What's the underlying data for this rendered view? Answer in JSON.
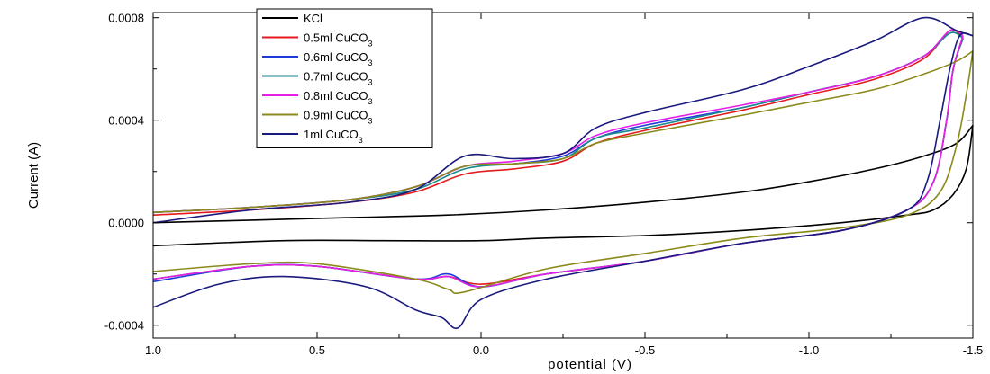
{
  "chart_data": {
    "type": "line",
    "title": "",
    "xlabel": "potential (V)",
    "ylabel": "Current (A)",
    "xlim": [
      1.0,
      -1.5
    ],
    "ylim": [
      -0.00045,
      0.00082
    ],
    "x_reversed": true,
    "x_ticks": [
      1.0,
      0.5,
      0.0,
      -0.5,
      -1.0,
      -1.5
    ],
    "x_tick_labels": [
      "1.0",
      "0.5",
      "0.0",
      "-0.5",
      "-1.0",
      "-1.5"
    ],
    "y_ticks": [
      -0.0004,
      0.0,
      0.0004,
      0.0008
    ],
    "y_tick_labels": [
      "-0.0004",
      "0.0000",
      "0.0004",
      "0.0008"
    ],
    "grid": false,
    "legend_position": "top-center",
    "series": [
      {
        "name": "KCl",
        "legend_main": "KCl",
        "legend_sub": "",
        "color": "#000000",
        "forward": [
          [
            1.0,
            0.0
          ],
          [
            0.7,
            1e-05
          ],
          [
            0.4,
            2e-05
          ],
          [
            0.1,
            3e-05
          ],
          [
            -0.2,
            5e-05
          ],
          [
            -0.5,
            8e-05
          ],
          [
            -0.8,
            0.00012
          ],
          [
            -1.0,
            0.00016
          ],
          [
            -1.2,
            0.00021
          ],
          [
            -1.35,
            0.00026
          ],
          [
            -1.45,
            0.00031
          ],
          [
            -1.5,
            0.00038
          ]
        ],
        "reverse": [
          [
            -1.5,
            0.00038
          ],
          [
            -1.48,
            0.00021
          ],
          [
            -1.44,
            0.00011
          ],
          [
            -1.38,
            5e-05
          ],
          [
            -1.3,
            3e-05
          ],
          [
            -1.1,
            0.0
          ],
          [
            -0.8,
            -3e-05
          ],
          [
            -0.5,
            -5e-05
          ],
          [
            -0.2,
            -6e-05
          ],
          [
            0.0,
            -7e-05
          ],
          [
            0.3,
            -7e-05
          ],
          [
            0.6,
            -7e-05
          ],
          [
            1.0,
            -9e-05
          ]
        ]
      },
      {
        "name": "0.5ml CuCO3",
        "legend_main": "0.5ml CuCO",
        "legend_sub": "3",
        "color": "#e41a1c",
        "forward": [
          [
            1.0,
            3e-05
          ],
          [
            0.7,
            5e-05
          ],
          [
            0.4,
            8e-05
          ],
          [
            0.2,
            0.00012
          ],
          [
            0.05,
            0.00019
          ],
          [
            -0.1,
            0.00021
          ],
          [
            -0.25,
            0.00024
          ],
          [
            -0.35,
            0.00031
          ],
          [
            -0.5,
            0.00036
          ],
          [
            -0.8,
            0.00044
          ],
          [
            -1.0,
            0.0005
          ],
          [
            -1.2,
            0.00056
          ],
          [
            -1.35,
            0.00064
          ],
          [
            -1.43,
            0.00075
          ],
          [
            -1.47,
            0.00072
          ]
        ],
        "reverse": [
          [
            -1.47,
            0.00072
          ],
          [
            -1.44,
            0.0006
          ],
          [
            -1.42,
            0.0004
          ],
          [
            -1.38,
            0.00016
          ],
          [
            -1.3,
            5e-05
          ],
          [
            -1.1,
            -3e-05
          ],
          [
            -0.8,
            -8e-05
          ],
          [
            -0.5,
            -0.00015
          ],
          [
            -0.2,
            -0.0002
          ],
          [
            0.0,
            -0.00024
          ],
          [
            0.1,
            -0.00021
          ],
          [
            0.2,
            -0.00022
          ],
          [
            0.5,
            -0.00017
          ],
          [
            0.7,
            -0.00017
          ],
          [
            1.0,
            -0.00022
          ]
        ]
      },
      {
        "name": "0.6ml CuCO3",
        "legend_main": "0.6ml CuCO",
        "legend_sub": "3",
        "color": "#1f3adb",
        "forward": [
          [
            1.0,
            4e-05
          ],
          [
            0.7,
            6e-05
          ],
          [
            0.4,
            9e-05
          ],
          [
            0.2,
            0.00014
          ],
          [
            0.05,
            0.00022
          ],
          [
            -0.1,
            0.00023
          ],
          [
            -0.25,
            0.00026
          ],
          [
            -0.35,
            0.00033
          ],
          [
            -0.5,
            0.00038
          ],
          [
            -0.8,
            0.00045
          ],
          [
            -1.0,
            0.00051
          ],
          [
            -1.2,
            0.00057
          ],
          [
            -1.35,
            0.00065
          ],
          [
            -1.43,
            0.00074
          ],
          [
            -1.47,
            0.00072
          ]
        ],
        "reverse": [
          [
            -1.47,
            0.00072
          ],
          [
            -1.44,
            0.0006
          ],
          [
            -1.42,
            0.0004
          ],
          [
            -1.38,
            0.00016
          ],
          [
            -1.3,
            5e-05
          ],
          [
            -1.1,
            -3e-05
          ],
          [
            -0.8,
            -8e-05
          ],
          [
            -0.5,
            -0.00015
          ],
          [
            -0.2,
            -0.0002
          ],
          [
            0.0,
            -0.00025
          ],
          [
            0.1,
            -0.0002
          ],
          [
            0.2,
            -0.00022
          ],
          [
            0.5,
            -0.00017
          ],
          [
            0.7,
            -0.00017
          ],
          [
            1.0,
            -0.00023
          ]
        ]
      },
      {
        "name": "0.7ml CuCO3",
        "legend_main": "0.7ml CuCO",
        "legend_sub": "3",
        "color": "#1a8a8a",
        "forward": [
          [
            1.0,
            4e-05
          ],
          [
            0.7,
            6e-05
          ],
          [
            0.4,
            9e-05
          ],
          [
            0.2,
            0.00013
          ],
          [
            0.05,
            0.00021
          ],
          [
            -0.1,
            0.00023
          ],
          [
            -0.25,
            0.00025
          ],
          [
            -0.35,
            0.00033
          ],
          [
            -0.5,
            0.00037
          ],
          [
            -0.8,
            0.00045
          ],
          [
            -1.0,
            0.00051
          ],
          [
            -1.2,
            0.00057
          ],
          [
            -1.35,
            0.00065
          ],
          [
            -1.43,
            0.00074
          ],
          [
            -1.47,
            0.00072
          ]
        ],
        "reverse": [
          [
            -1.47,
            0.00072
          ],
          [
            -1.44,
            0.0006
          ],
          [
            -1.42,
            0.0004
          ],
          [
            -1.38,
            0.00016
          ],
          [
            -1.3,
            5e-05
          ],
          [
            -1.1,
            -3e-05
          ],
          [
            -0.8,
            -8e-05
          ],
          [
            -0.5,
            -0.00015
          ],
          [
            -0.2,
            -0.0002
          ],
          [
            0.0,
            -0.00025
          ],
          [
            0.1,
            -0.00021
          ],
          [
            0.2,
            -0.00022
          ],
          [
            0.5,
            -0.00017
          ],
          [
            0.7,
            -0.00017
          ],
          [
            1.0,
            -0.00022
          ]
        ]
      },
      {
        "name": "0.8ml CuCO3",
        "legend_main": "0.8ml CuCO",
        "legend_sub": "3",
        "color": "#e61ee6",
        "forward": [
          [
            1.0,
            4e-05
          ],
          [
            0.7,
            6e-05
          ],
          [
            0.4,
            9e-05
          ],
          [
            0.2,
            0.00014
          ],
          [
            0.05,
            0.00022
          ],
          [
            -0.1,
            0.00024
          ],
          [
            -0.25,
            0.00027
          ],
          [
            -0.35,
            0.00034
          ],
          [
            -0.5,
            0.00039
          ],
          [
            -0.8,
            0.00046
          ],
          [
            -1.0,
            0.00051
          ],
          [
            -1.2,
            0.00057
          ],
          [
            -1.35,
            0.00065
          ],
          [
            -1.43,
            0.00075
          ],
          [
            -1.47,
            0.00073
          ]
        ],
        "reverse": [
          [
            -1.47,
            0.00073
          ],
          [
            -1.44,
            0.0006
          ],
          [
            -1.42,
            0.0004
          ],
          [
            -1.38,
            0.00016
          ],
          [
            -1.3,
            5e-05
          ],
          [
            -1.1,
            -3e-05
          ],
          [
            -0.8,
            -8e-05
          ],
          [
            -0.5,
            -0.00015
          ],
          [
            -0.2,
            -0.0002
          ],
          [
            0.0,
            -0.00025
          ],
          [
            0.1,
            -0.00021
          ],
          [
            0.2,
            -0.00022
          ],
          [
            0.5,
            -0.00017
          ],
          [
            0.7,
            -0.00017
          ],
          [
            1.0,
            -0.00022
          ]
        ]
      },
      {
        "name": "0.9ml CuCO3",
        "legend_main": "0.9ml CuCO",
        "legend_sub": "3",
        "color": "#8a8a1a",
        "forward": [
          [
            1.0,
            4e-05
          ],
          [
            0.7,
            6e-05
          ],
          [
            0.4,
            9e-05
          ],
          [
            0.2,
            0.00014
          ],
          [
            0.05,
            0.00022
          ],
          [
            -0.1,
            0.00023
          ],
          [
            -0.25,
            0.00025
          ],
          [
            -0.35,
            0.00031
          ],
          [
            -0.5,
            0.00035
          ],
          [
            -0.8,
            0.00042
          ],
          [
            -1.0,
            0.00047
          ],
          [
            -1.2,
            0.00052
          ],
          [
            -1.35,
            0.00058
          ],
          [
            -1.45,
            0.00063
          ],
          [
            -1.5,
            0.00067
          ]
        ],
        "reverse": [
          [
            -1.5,
            0.00067
          ],
          [
            -1.48,
            0.0005
          ],
          [
            -1.45,
            0.0003
          ],
          [
            -1.4,
            0.00012
          ],
          [
            -1.3,
            3e-05
          ],
          [
            -1.1,
            -2e-05
          ],
          [
            -0.8,
            -6e-05
          ],
          [
            -0.5,
            -0.00012
          ],
          [
            -0.2,
            -0.00018
          ],
          [
            0.05,
            -0.00027
          ],
          [
            0.1,
            -0.00026
          ],
          [
            0.2,
            -0.00022
          ],
          [
            0.5,
            -0.00016
          ],
          [
            0.7,
            -0.00016
          ],
          [
            1.0,
            -0.00019
          ]
        ]
      },
      {
        "name": "1ml CuCO3",
        "legend_main": "1ml CuCO",
        "legend_sub": "3",
        "color": "#1a1a7e",
        "forward": [
          [
            1.0,
            0.0
          ],
          [
            0.7,
            5e-05
          ],
          [
            0.4,
            8e-05
          ],
          [
            0.2,
            0.00013
          ],
          [
            0.05,
            0.00026
          ],
          [
            -0.1,
            0.00025
          ],
          [
            -0.25,
            0.00027
          ],
          [
            -0.35,
            0.00037
          ],
          [
            -0.5,
            0.00043
          ],
          [
            -0.8,
            0.00052
          ],
          [
            -1.0,
            0.00061
          ],
          [
            -1.2,
            0.00071
          ],
          [
            -1.35,
            0.0008
          ],
          [
            -1.45,
            0.00075
          ],
          [
            -1.5,
            0.00073
          ]
        ],
        "reverse": [
          [
            -1.5,
            0.00073
          ],
          [
            -1.46,
            0.00073
          ],
          [
            -1.43,
            0.0006
          ],
          [
            -1.4,
            0.0004
          ],
          [
            -1.36,
            0.00016
          ],
          [
            -1.3,
            5e-05
          ],
          [
            -1.1,
            -3e-05
          ],
          [
            -0.8,
            -8e-05
          ],
          [
            -0.5,
            -0.00015
          ],
          [
            -0.2,
            -0.00022
          ],
          [
            0.0,
            -0.0003
          ],
          [
            0.07,
            -0.00041
          ],
          [
            0.12,
            -0.00037
          ],
          [
            0.2,
            -0.00034
          ],
          [
            0.35,
            -0.00025
          ],
          [
            0.6,
            -0.00021
          ],
          [
            0.8,
            -0.00024
          ],
          [
            1.0,
            -0.00033
          ]
        ]
      }
    ]
  }
}
